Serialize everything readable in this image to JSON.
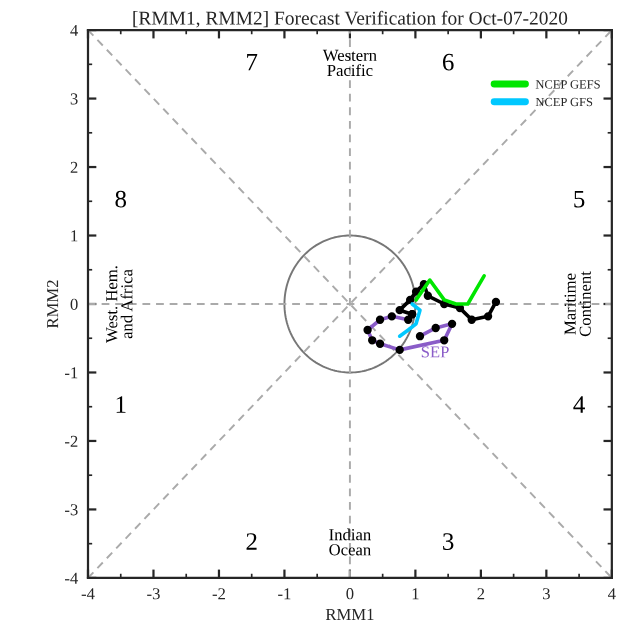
{
  "chart_data": {
    "type": "line",
    "title": "[RMM1, RMM2] Forecast Verification for Oct-07-2020",
    "xlabel": "RMM1",
    "ylabel": "RMM2",
    "xlim": [
      -4,
      4
    ],
    "ylim": [
      -4,
      4
    ],
    "xticks": [
      -4,
      -3,
      -2,
      -1,
      0,
      1,
      2,
      3,
      4
    ],
    "yticks": [
      -4,
      -3,
      -2,
      -1,
      0,
      1,
      2,
      3,
      4
    ],
    "grid": false,
    "legend": "top right",
    "line_style": "solid",
    "series": [
      {
        "color": "#aaaaaa",
        "line_style": "dashed",
        "x": [
          -4,
          4
        ],
        "values": [
          -4,
          4
        ]
      },
      {
        "color": "#aaaaaa",
        "line_style": "dashed",
        "x": [
          -4,
          4
        ],
        "values": [
          4,
          -4
        ]
      },
      {
        "color": "#aaaaaa",
        "line_style": "dashed",
        "x": [
          0,
          0
        ],
        "values": [
          -4,
          4
        ]
      },
      {
        "color": "#aaaaaa",
        "line_style": "dashed",
        "x": [
          -4,
          4
        ],
        "values": [
          0,
          0
        ]
      },
      {
        "color": "#8a5cc8",
        "marker": "circle",
        "x": [
          1.07,
          1.31,
          1.56,
          1.44,
          0.76,
          0.46,
          0.34,
          0.27,
          0.46,
          0.64,
          0.89,
          0.95
        ],
        "values": [
          -0.47,
          -0.35,
          -0.29,
          -0.53,
          -0.67,
          -0.58,
          -0.53,
          -0.38,
          -0.23,
          -0.18,
          -0.23,
          -0.15
        ]
      },
      {
        "color": "#000000",
        "marker": "circle",
        "x": [
          0.95,
          0.76,
          0.92,
          1.01,
          1.13,
          1.19,
          1.44,
          1.68,
          1.86,
          2.11,
          2.23
        ],
        "values": [
          -0.15,
          -0.09,
          0.06,
          0.18,
          0.29,
          0.12,
          0.0,
          -0.06,
          -0.23,
          -0.18,
          0.03
        ]
      },
      {
        "name": "NCEP GEFS",
        "color": "#00e600",
        "x": [
          1.01,
          1.22,
          1.44,
          1.62,
          1.8,
          1.92,
          2.05
        ],
        "values": [
          0.06,
          0.35,
          0.06,
          0.0,
          0.0,
          0.2,
          0.41
        ]
      },
      {
        "name": "NCEP GFS",
        "color": "#00c8ff",
        "x": [
          0.95,
          1.07,
          1.01,
          0.89,
          0.76
        ],
        "values": [
          0.0,
          -0.09,
          -0.29,
          -0.38,
          -0.47
        ]
      }
    ],
    "annotations": [
      "7",
      "Western\nPacific",
      "6",
      "8",
      "5",
      "West. Hem.\nand Africa",
      "Maritime\nContinent",
      "1",
      "4",
      "2",
      "Indian\nOcean",
      "3",
      "SEP"
    ]
  }
}
